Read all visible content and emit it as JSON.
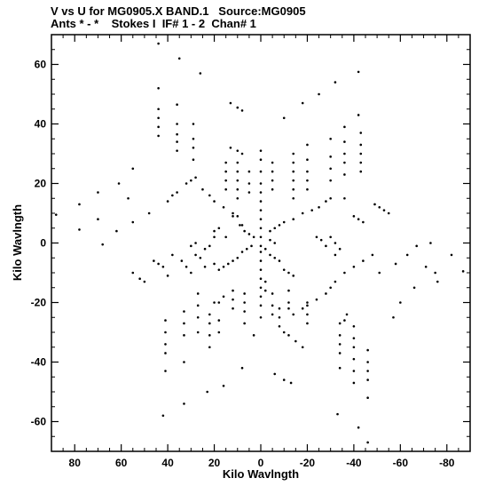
{
  "header": {
    "line1": "V vs U for MG0905.X BAND.1   Source:MG0905",
    "line2": "Ants * - *    Stokes I  IF# 1 - 2  Chan# 1"
  },
  "chart_data": {
    "type": "scatter",
    "xlabel": "Kilo Wavlngth",
    "ylabel": "Kilo Wavlngth",
    "xlim": [
      90,
      -90
    ],
    "ylim": [
      -70,
      70
    ],
    "x_ticks": [
      80,
      60,
      40,
      20,
      0,
      -20,
      -40,
      -60,
      -80
    ],
    "x_tick_labels": [
      "80",
      "60",
      "40",
      "20",
      "0",
      "-20",
      "-40",
      "-60",
      "-80"
    ],
    "y_ticks": [
      60,
      40,
      20,
      0,
      -20,
      -40,
      -60
    ],
    "y_tick_labels": [
      "60",
      "40",
      "20",
      "0",
      "-20",
      "-40",
      "-60"
    ],
    "grid": false,
    "point_color": "#000000",
    "points": [
      [
        44,
        67
      ],
      [
        35,
        62
      ],
      [
        26,
        57
      ],
      [
        44,
        52
      ],
      [
        -42,
        57.5
      ],
      [
        -32,
        54
      ],
      [
        -25,
        50
      ],
      [
        -18,
        47
      ],
      [
        13,
        47
      ],
      [
        10,
        45.5
      ],
      [
        8,
        44.5
      ],
      [
        44,
        45
      ],
      [
        36,
        46.5
      ],
      [
        44,
        42
      ],
      [
        44,
        39
      ],
      [
        36,
        40
      ],
      [
        44,
        36
      ],
      [
        36,
        36.5
      ],
      [
        29,
        40
      ],
      [
        29,
        35
      ],
      [
        29,
        32
      ],
      [
        29,
        28
      ],
      [
        36,
        34
      ],
      [
        36,
        31
      ],
      [
        13,
        32
      ],
      [
        10,
        31
      ],
      [
        8,
        30
      ],
      [
        0,
        31
      ],
      [
        -10,
        42
      ],
      [
        -36,
        39
      ],
      [
        -42,
        43
      ],
      [
        -36,
        34
      ],
      [
        -36,
        30
      ],
      [
        -36,
        27
      ],
      [
        -36,
        23
      ],
      [
        -36,
        15
      ],
      [
        -30,
        35
      ],
      [
        -30,
        29
      ],
      [
        -30,
        25
      ],
      [
        -30,
        21
      ],
      [
        -20,
        33
      ],
      [
        -20,
        28
      ],
      [
        -20,
        24
      ],
      [
        -20,
        21
      ],
      [
        -20,
        18
      ],
      [
        -14,
        30
      ],
      [
        -14,
        27
      ],
      [
        -14,
        24
      ],
      [
        -14,
        21
      ],
      [
        -14,
        18
      ],
      [
        -14,
        15
      ],
      [
        -43,
        37
      ],
      [
        -43,
        33
      ],
      [
        -43,
        30
      ],
      [
        -43,
        27
      ],
      [
        -43,
        24
      ],
      [
        -5,
        27
      ],
      [
        -5,
        24
      ],
      [
        -5,
        21
      ],
      [
        -5,
        18
      ],
      [
        15,
        27
      ],
      [
        15,
        24
      ],
      [
        15,
        21
      ],
      [
        15,
        18
      ],
      [
        10,
        27
      ],
      [
        10,
        24
      ],
      [
        10,
        21
      ],
      [
        10,
        18
      ],
      [
        10,
        15
      ],
      [
        5,
        24
      ],
      [
        5,
        20
      ],
      [
        5,
        17
      ],
      [
        0,
        28
      ],
      [
        0,
        24
      ],
      [
        0,
        20
      ],
      [
        0,
        17
      ],
      [
        0,
        14
      ],
      [
        0,
        11
      ],
      [
        0,
        8
      ],
      [
        0,
        5
      ],
      [
        0,
        2
      ],
      [
        -49,
        13
      ],
      [
        -51,
        12
      ],
      [
        -53,
        11
      ],
      [
        -55,
        10
      ],
      [
        -58,
        -7
      ],
      [
        -63,
        -4
      ],
      [
        -67,
        -1
      ],
      [
        -73,
        0
      ],
      [
        -71,
        -8
      ],
      [
        -75,
        -10
      ],
      [
        -82,
        -4
      ],
      [
        -87,
        -9.5
      ],
      [
        -76,
        -13
      ],
      [
        -66,
        -15
      ],
      [
        -60,
        -20
      ],
      [
        -57,
        -25
      ],
      [
        -51,
        -10
      ],
      [
        88,
        9.5
      ],
      [
        78,
        13
      ],
      [
        70,
        17
      ],
      [
        61,
        20
      ],
      [
        55,
        25
      ],
      [
        57,
        15
      ],
      [
        48,
        10
      ],
      [
        55,
        7
      ],
      [
        62,
        4
      ],
      [
        70,
        8
      ],
      [
        78,
        4.5
      ],
      [
        68,
        -0.5
      ],
      [
        55,
        -10
      ],
      [
        52,
        -12
      ],
      [
        50,
        -13
      ],
      [
        46,
        -6
      ],
      [
        44,
        -7
      ],
      [
        42,
        -8
      ],
      [
        40,
        -11
      ],
      [
        38,
        -4
      ],
      [
        34,
        -6
      ],
      [
        32,
        -8
      ],
      [
        30,
        -10
      ],
      [
        24,
        -8
      ],
      [
        20,
        -7
      ],
      [
        -36,
        -10
      ],
      [
        -40,
        -8
      ],
      [
        -44,
        -6
      ],
      [
        -48,
        -4
      ],
      [
        -32,
        -13
      ],
      [
        -30,
        -15
      ],
      [
        -28,
        -17
      ],
      [
        -24,
        -19
      ],
      [
        -20,
        -21
      ],
      [
        -18,
        -22
      ],
      [
        -14,
        -24
      ],
      [
        42,
        -58
      ],
      [
        33,
        -54
      ],
      [
        23,
        -50
      ],
      [
        16,
        -48
      ],
      [
        8,
        -42
      ],
      [
        -6,
        -44
      ],
      [
        -10,
        -46
      ],
      [
        -13,
        -47
      ],
      [
        -33,
        -57.5
      ],
      [
        -42,
        -62
      ],
      [
        -46,
        -67
      ],
      [
        -40,
        -43
      ],
      [
        -40,
        -47
      ],
      [
        -46,
        -36
      ],
      [
        -46,
        -40
      ],
      [
        -46,
        -43
      ],
      [
        -46,
        -46
      ],
      [
        -46,
        -52
      ],
      [
        -40,
        -28
      ],
      [
        -40,
        -32
      ],
      [
        -40,
        -35
      ],
      [
        -40,
        -39
      ],
      [
        -34,
        -27
      ],
      [
        -34,
        -31
      ],
      [
        -34,
        -34
      ],
      [
        -34,
        -37
      ],
      [
        -34,
        -42
      ],
      [
        -36,
        -26
      ],
      [
        -37,
        -24
      ],
      [
        -10,
        -30
      ],
      [
        -12,
        -31
      ],
      [
        -15,
        -33
      ],
      [
        -18,
        -35
      ],
      [
        -20,
        -20
      ],
      [
        -20,
        -24
      ],
      [
        -20,
        -27
      ],
      [
        -12,
        -16
      ],
      [
        -12,
        -20
      ],
      [
        -12,
        -22
      ],
      [
        -8,
        -22
      ],
      [
        -8,
        -25
      ],
      [
        -8,
        -28
      ],
      [
        -5,
        -17
      ],
      [
        -5,
        -21
      ],
      [
        -5,
        -24
      ],
      [
        41,
        -26
      ],
      [
        41,
        -30
      ],
      [
        41,
        -34
      ],
      [
        41,
        -37
      ],
      [
        41,
        -43
      ],
      [
        33,
        -40
      ],
      [
        33,
        -31
      ],
      [
        33,
        -27
      ],
      [
        33,
        -23
      ],
      [
        27,
        -17
      ],
      [
        27,
        -21
      ],
      [
        27,
        -25
      ],
      [
        27,
        -30
      ],
      [
        22,
        -35
      ],
      [
        22,
        -31
      ],
      [
        22,
        -27
      ],
      [
        22,
        -24
      ],
      [
        18,
        -30
      ],
      [
        18,
        -26
      ],
      [
        18,
        -20
      ],
      [
        12,
        -19
      ],
      [
        12,
        -16
      ],
      [
        12,
        -22
      ],
      [
        7,
        -17
      ],
      [
        7,
        -20
      ],
      [
        7,
        -23
      ],
      [
        7,
        -27
      ],
      [
        3,
        -31
      ],
      [
        20,
        -20
      ],
      [
        16,
        -18
      ],
      [
        0,
        -1
      ],
      [
        0,
        -3
      ],
      [
        0,
        -6
      ],
      [
        0,
        -9
      ],
      [
        0,
        -12
      ],
      [
        0,
        -15
      ],
      [
        0,
        -18
      ],
      [
        0,
        -21
      ],
      [
        0,
        -25
      ],
      [
        -2,
        -13
      ],
      [
        -2,
        -16
      ],
      [
        40,
        14
      ],
      [
        38,
        16
      ],
      [
        36,
        17
      ],
      [
        32,
        20
      ],
      [
        30,
        21
      ],
      [
        28,
        22
      ],
      [
        25,
        18
      ],
      [
        22,
        16
      ],
      [
        20,
        14
      ],
      [
        16,
        12
      ],
      [
        12,
        10
      ],
      [
        10,
        9
      ],
      [
        8,
        6
      ],
      [
        -10,
        7
      ],
      [
        -14,
        8
      ],
      [
        -18,
        10
      ],
      [
        -22,
        11
      ],
      [
        -25,
        12
      ],
      [
        -28,
        14
      ],
      [
        -30,
        15
      ],
      [
        -40,
        9
      ],
      [
        -42,
        8
      ],
      [
        -44,
        7
      ],
      [
        -30,
        2
      ],
      [
        -32,
        0
      ],
      [
        -34,
        -2
      ],
      [
        -4,
        4
      ],
      [
        -6,
        5
      ],
      [
        -8,
        6
      ],
      [
        -4,
        1
      ],
      [
        -6,
        0
      ],
      [
        -2,
        -2
      ],
      [
        -4,
        -4
      ],
      [
        -6,
        -5
      ],
      [
        -8,
        -6
      ],
      [
        -10,
        -9
      ],
      [
        -12,
        -10
      ],
      [
        -14,
        -11
      ],
      [
        4,
        -1
      ],
      [
        6,
        -2
      ],
      [
        8,
        -3
      ],
      [
        10,
        -5
      ],
      [
        12,
        -6
      ],
      [
        14,
        -7
      ],
      [
        16,
        -8
      ],
      [
        18,
        -9
      ],
      [
        3,
        2
      ],
      [
        5,
        3
      ],
      [
        7,
        4
      ],
      [
        9,
        6
      ],
      [
        12,
        9
      ],
      [
        -24,
        2
      ],
      [
        -26,
        1
      ],
      [
        -28,
        -1
      ],
      [
        -32,
        -4
      ],
      [
        22,
        -1
      ],
      [
        24,
        -2
      ],
      [
        28,
        0
      ],
      [
        30,
        -1
      ],
      [
        18,
        5
      ],
      [
        20,
        4
      ],
      [
        20,
        2
      ],
      [
        15,
        2
      ],
      [
        28,
        -4
      ],
      [
        26,
        -5
      ]
    ]
  }
}
